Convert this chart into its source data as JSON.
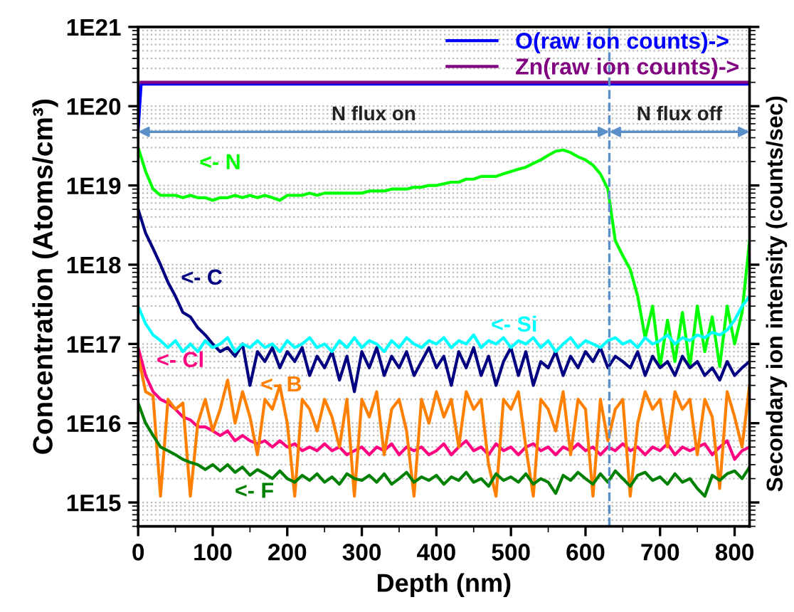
{
  "chart_data": {
    "type": "line",
    "xlabel": "Depth (nm)",
    "ylabel": "Concentration (Atoms/cm³)",
    "y2label": "Secondary ion intensity (counts/sec)",
    "log": "y",
    "grid": "y",
    "legend": "top right",
    "xlim": [
      0,
      820
    ],
    "xticks": [
      0,
      100,
      200,
      300,
      400,
      500,
      600,
      700,
      800
    ],
    "ylim": [
      500000000000000.0,
      1e+21
    ],
    "yticks": [
      {
        "value": 1000000000000000.0,
        "label": "1E15"
      },
      {
        "value": 1e+16,
        "label": "1E16"
      },
      {
        "value": 1e+17,
        "label": "1E17"
      },
      {
        "value": 1e+18,
        "label": "1E18"
      },
      {
        "value": 1e+19,
        "label": "1E19"
      },
      {
        "value": 1e+20,
        "label": "1E20"
      },
      {
        "value": 1e+21,
        "label": "1E21"
      }
    ],
    "x": [
      0,
      10,
      20,
      30,
      40,
      50,
      60,
      70,
      80,
      90,
      100,
      110,
      120,
      130,
      140,
      150,
      160,
      170,
      180,
      190,
      200,
      210,
      220,
      230,
      240,
      250,
      260,
      270,
      280,
      290,
      300,
      310,
      320,
      330,
      340,
      350,
      360,
      370,
      380,
      390,
      400,
      410,
      420,
      430,
      440,
      450,
      460,
      470,
      480,
      490,
      500,
      510,
      520,
      530,
      540,
      550,
      560,
      570,
      580,
      590,
      600,
      610,
      620,
      630,
      640,
      650,
      660,
      670,
      680,
      690,
      700,
      710,
      720,
      730,
      740,
      750,
      760,
      770,
      780,
      790,
      800,
      810,
      820
    ],
    "series": [
      {
        "name": "<- N",
        "color": "#00ff00",
        "values": [
          3e+19,
          1.5e+19,
          9e+18,
          7.5e+18,
          7.5e+18,
          7.5e+18,
          7e+18,
          7.5e+18,
          7e+18,
          7e+18,
          6.5e+18,
          7e+18,
          7e+18,
          7.5e+18,
          7e+18,
          7.5e+18,
          7e+18,
          7.5e+18,
          7e+18,
          6.5e+18,
          7.5e+18,
          7.5e+18,
          7.5e+18,
          8e+18,
          7.5e+18,
          8e+18,
          8e+18,
          8e+18,
          8e+18,
          8e+18,
          8e+18,
          8.5e+18,
          8.5e+18,
          8.5e+18,
          9e+18,
          9e+18,
          9e+18,
          9.5e+18,
          9.5e+18,
          1e+19,
          1e+19,
          1.05e+19,
          1.1e+19,
          1.1e+19,
          1.2e+19,
          1.2e+19,
          1.3e+19,
          1.3e+19,
          1.3e+19,
          1.4e+19,
          1.5e+19,
          1.6e+19,
          1.7e+19,
          1.9e+19,
          2.1e+19,
          2.4e+19,
          2.7e+19,
          2.8e+19,
          2.6e+19,
          2.3e+19,
          2.1e+19,
          1.8e+19,
          1.4e+19,
          9e+18,
          2e+18,
          1.3e+18,
          8.7e+17,
          4e+17,
          1.2e+17,
          3e+17,
          5.2e+16,
          2e+17,
          6e+16,
          2.5e+17,
          5.2e+16,
          3e+17,
          8e+16,
          2.2e+17,
          5.2e+16,
          3e+17,
          1e+17,
          2.5e+17,
          2e+18
        ]
      },
      {
        "name": "<- C",
        "color": "#000080",
        "values": [
          5e+18,
          2.5e+18,
          1.6e+18,
          1e+18,
          6e+17,
          4e+17,
          2.5e+17,
          2.2e+17,
          1.6e+17,
          1.3e+17,
          1e+17,
          8e+16,
          9e+16,
          7e+16,
          1e+17,
          3e+16,
          8e+16,
          6e+16,
          9e+16,
          5e+16,
          8e+16,
          6e+16,
          9e+16,
          4e+16,
          7e+16,
          5e+16,
          8e+16,
          3.5e+16,
          7e+16,
          2.5e+16,
          8e+16,
          5e+16,
          9e+16,
          4e+16,
          7e+16,
          5e+16,
          8e+16,
          4e+16,
          6e+16,
          9e+16,
          5e+16,
          7e+16,
          3e+16,
          8e+16,
          5e+16,
          9e+16,
          4e+16,
          7e+16,
          3e+16,
          6e+16,
          9e+16,
          4e+16,
          8e+16,
          3e+16,
          6e+16,
          5e+16,
          8e+16,
          4e+16,
          7e+16,
          5e+16,
          8e+16,
          6e+16,
          9e+16,
          5e+16,
          7e+16,
          6e+16,
          5e+16,
          8e+16,
          4e+16,
          7e+16,
          5e+16,
          6e+16,
          4e+16,
          7e+16,
          5e+16,
          6e+16,
          4e+16,
          5e+16,
          3.5e+16,
          6e+16,
          4e+16,
          5e+16,
          6e+16
        ]
      },
      {
        "name": "<- Si",
        "color": "#00ffff",
        "values": [
          3e+17,
          1.8e+17,
          1.3e+17,
          1.1e+17,
          9e+16,
          1.1e+17,
          8e+16,
          1e+17,
          8e+16,
          1.1e+17,
          9e+16,
          1e+17,
          1.2e+17,
          8e+16,
          1e+17,
          9e+16,
          1.1e+17,
          9e+16,
          1e+17,
          8e+16,
          1.1e+17,
          9e+16,
          1e+17,
          1.2e+17,
          9e+16,
          1e+17,
          8e+16,
          1.1e+17,
          9e+16,
          1.2e+17,
          9e+16,
          1.1e+17,
          1e+17,
          8e+16,
          1.1e+17,
          9e+16,
          1.2e+17,
          1e+17,
          9e+16,
          1.1e+17,
          1e+17,
          1.2e+17,
          9e+16,
          1.1e+17,
          1e+17,
          1.3e+17,
          9e+16,
          1.1e+17,
          1e+17,
          1.2e+17,
          9e+16,
          1.1e+17,
          1e+17,
          1.2e+17,
          9e+16,
          1.1e+17,
          8e+16,
          1e+17,
          1.2e+17,
          9e+16,
          1.1e+17,
          1e+17,
          9e+16,
          1.1e+17,
          1.2e+17,
          1e+17,
          1.1e+17,
          9e+16,
          1.2e+17,
          1e+17,
          1.1e+17,
          1.3e+17,
          1e+17,
          1.2e+17,
          1.1e+17,
          1.3e+17,
          1.2e+17,
          1.4e+17,
          1.3e+17,
          1.5e+17,
          2e+17,
          3e+17,
          4e+17
        ]
      },
      {
        "name": "<- Cl",
        "color": "#ff0080",
        "values": [
          9e+16,
          4e+16,
          2.5e+16,
          2e+16,
          1.8e+16,
          1.5e+16,
          1.2e+16,
          1.1e+16,
          9000000000000000.0,
          9000000000000000.0,
          8000000000000000.0,
          7000000000000000.0,
          8000000000000000.0,
          6000000000000000.0,
          7000000000000000.0,
          6000000000000000.0,
          5500000000000000.0,
          6000000000000000.0,
          5000000000000000.0,
          6000000000000000.0,
          5000000000000000.0,
          5500000000000000.0,
          4500000000000000.0,
          5000000000000000.0,
          4500000000000000.0,
          5500000000000000.0,
          4500000000000000.0,
          5000000000000000.0,
          4000000000000000.0,
          4500000000000000.0,
          5000000000000000.0,
          4000000000000000.0,
          5000000000000000.0,
          4500000000000000.0,
          5500000000000000.0,
          4000000000000000.0,
          5000000000000000.0,
          4500000000000000.0,
          5000000000000000.0,
          4000000000000000.0,
          4500000000000000.0,
          5500000000000000.0,
          4000000000000000.0,
          5000000000000000.0,
          6000000000000000.0,
          4500000000000000.0,
          5000000000000000.0,
          4000000000000000.0,
          5500000000000000.0,
          4500000000000000.0,
          5000000000000000.0,
          4000000000000000.0,
          5000000000000000.0,
          5500000000000000.0,
          4500000000000000.0,
          5000000000000000.0,
          4000000000000000.0,
          5000000000000000.0,
          4500000000000000.0,
          5500000000000000.0,
          4500000000000000.0,
          5000000000000000.0,
          4000000000000000.0,
          5000000000000000.0,
          4500000000000000.0,
          5500000000000000.0,
          4500000000000000.0,
          5000000000000000.0,
          4000000000000000.0,
          5000000000000000.0,
          4500000000000000.0,
          5500000000000000.0,
          4000000000000000.0,
          5000000000000000.0,
          4500000000000000.0,
          5000000000000000.0,
          5500000000000000.0,
          4000000000000000.0,
          5000000000000000.0,
          6000000000000000.0,
          3500000000000000.0,
          4500000000000000.0,
          5000000000000000.0
        ]
      },
      {
        "name": "<- B",
        "color": "#ff8000",
        "values": [
          7e+16,
          2.5e+16,
          2.2e+16,
          1200000000000000.0,
          2e+16,
          1.5e+16,
          1.8e+16,
          1200000000000000.0,
          1e+16,
          2e+16,
          8000000000000000.0,
          1.5e+16,
          3.5e+16,
          1e+16,
          2.5e+16,
          1.2e+16,
          4000000000000000.0,
          2e+16,
          1.5e+16,
          3e+16,
          1e+16,
          1200000000000000.0,
          2e+16,
          1.5e+16,
          8000000000000000.0,
          2e+16,
          1.2e+16,
          5000000000000000.0,
          2e+16,
          1200000000000000.0,
          2e+16,
          1.2e+16,
          2.5e+16,
          4000000000000000.0,
          1.5e+16,
          2e+16,
          8000000000000000.0,
          1200000000000000.0,
          2e+16,
          1e+16,
          2.5e+16,
          1.2e+16,
          2e+16,
          5000000000000000.0,
          2.5e+16,
          1.5e+16,
          2e+16,
          3000000000000000.0,
          1200000000000000.0,
          2e+16,
          1.5e+16,
          2.5e+16,
          5000000000000000.0,
          1200000000000000.0,
          2e+16,
          1.5e+16,
          8000000000000000.0,
          2.5e+16,
          4000000000000000.0,
          2e+16,
          1.5e+16,
          1200000000000000.0,
          2e+16,
          6000000000000000.0,
          1.5e+16,
          2e+16,
          1200000000000000.0,
          1e+16,
          2.5e+16,
          1.5e+16,
          2e+16,
          5000000000000000.0,
          2.5e+16,
          1.5e+16,
          2e+16,
          4000000000000000.0,
          2e+16,
          1.2e+16,
          1500000000000000.0,
          2.5e+16,
          1.2e+16,
          5000000000000000.0,
          3e+16
        ]
      },
      {
        "name": "<- F",
        "color": "#008000",
        "values": [
          1.8e+16,
          1e+16,
          7000000000000000.0,
          5000000000000000.0,
          4500000000000000.0,
          4000000000000000.0,
          3500000000000000.0,
          3200000000000000.0,
          3000000000000000.0,
          2600000000000000.0,
          3000000000000000.0,
          2500000000000000.0,
          3000000000000000.0,
          2400000000000000.0,
          2800000000000000.0,
          2200000000000000.0,
          2600000000000000.0,
          2300000000000000.0,
          2000000000000000.0,
          2500000000000000.0,
          2000000000000000.0,
          1800000000000000.0,
          2200000000000000.0,
          1900000000000000.0,
          2300000000000000.0,
          1800000000000000.0,
          2100000000000000.0,
          1700000000000000.0,
          2300000000000000.0,
          2000000000000000.0,
          1900000000000000.0,
          2200000000000000.0,
          1800000000000000.0,
          2300000000000000.0,
          1700000000000000.0,
          2000000000000000.0,
          2400000000000000.0,
          1800000000000000.0,
          2100000000000000.0,
          1900000000000000.0,
          2200000000000000.0,
          1700000000000000.0,
          2100000000000000.0,
          1900000000000000.0,
          2400000000000000.0,
          1800000000000000.0,
          2000000000000000.0,
          1600000000000000.0,
          2300000000000000.0,
          1900000000000000.0,
          2100000000000000.0,
          1800000000000000.0,
          2300000000000000.0,
          1700000000000000.0,
          2000000000000000.0,
          1800000000000000.0,
          1300000000000000.0,
          2200000000000000.0,
          1900000000000000.0,
          2400000000000000.0,
          2000000000000000.0,
          1700000000000000.0,
          2300000000000000.0,
          1800000000000000.0,
          2500000000000000.0,
          2000000000000000.0,
          1600000000000000.0,
          2200000000000000.0,
          2400000000000000.0,
          1900000000000000.0,
          2100000000000000.0,
          1700000000000000.0,
          2300000000000000.0,
          1800000000000000.0,
          2000000000000000.0,
          1500000000000000.0,
          1200000000000000.0,
          2200000000000000.0,
          1900000000000000.0,
          2300000000000000.0,
          2500000000000000.0,
          2000000000000000.0,
          2800000000000000.0
        ]
      },
      {
        "name": "O(raw ion counts)->",
        "color": "#0000ff",
        "x": [
          0,
          4,
          820
        ],
        "values": [
          5e+19,
          1.9e+20,
          1.9e+20
        ]
      },
      {
        "name": "Zn(raw ion counts)->",
        "color": "#800080",
        "x": [
          4,
          820
        ],
        "values": [
          2e+20,
          2e+20
        ]
      }
    ],
    "ref_lines": [
      {
        "axis": "x",
        "value": 632,
        "color": "#5b8fc9",
        "line_style": "dashed"
      }
    ],
    "annotations": [
      "N flux on",
      "N flux off"
    ]
  }
}
